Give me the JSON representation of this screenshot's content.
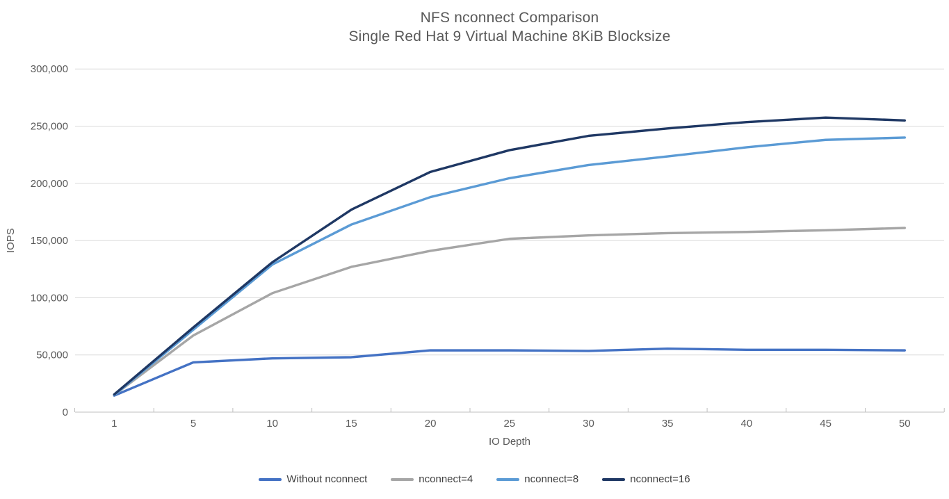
{
  "title": {
    "line1": "NFS nconnect Comparison",
    "line2": "Single Red Hat 9 Virtual Machine 8KiB Blocksize"
  },
  "chart_data": {
    "type": "line",
    "title": "NFS nconnect Comparison",
    "subtitle": "Single Red Hat 9 Virtual Machine 8KiB Blocksize",
    "xlabel": "IO Depth",
    "ylabel": "IOPS",
    "x_type": "categorical",
    "categories": [
      "1",
      "5",
      "10",
      "15",
      "20",
      "25",
      "30",
      "35",
      "40",
      "45",
      "50"
    ],
    "ylim": [
      0,
      300000
    ],
    "ytick_step": 50000,
    "ytick_labels": [
      "0",
      "50,000",
      "100,000",
      "150,000",
      "200,000",
      "250,000",
      "300,000"
    ],
    "grid": "horizontal",
    "legend_position": "bottom",
    "series": [
      {
        "name": "Without nconnect",
        "color": "#4472C4",
        "values": [
          14500,
          43500,
          47000,
          48000,
          54000,
          54000,
          53500,
          55500,
          54500,
          54500,
          54000
        ]
      },
      {
        "name": "nconnect=4",
        "color": "#A6A6A6",
        "values": [
          15000,
          67000,
          104000,
          127000,
          141000,
          151500,
          154500,
          156500,
          157500,
          159000,
          161000
        ]
      },
      {
        "name": "nconnect=8",
        "color": "#5B9BD5",
        "values": [
          15000,
          72000,
          129000,
          164000,
          188000,
          204500,
          216000,
          223500,
          231500,
          238000,
          240000
        ]
      },
      {
        "name": "nconnect=16",
        "color": "#1F3864",
        "values": [
          15500,
          74000,
          131000,
          177000,
          210000,
          229000,
          241500,
          248000,
          253500,
          257500,
          255000
        ]
      }
    ]
  },
  "colors": {
    "title_text": "#595959",
    "axis_text": "#595959",
    "gridline": "#D9D9D9",
    "axis_line": "#BFBFBF"
  }
}
